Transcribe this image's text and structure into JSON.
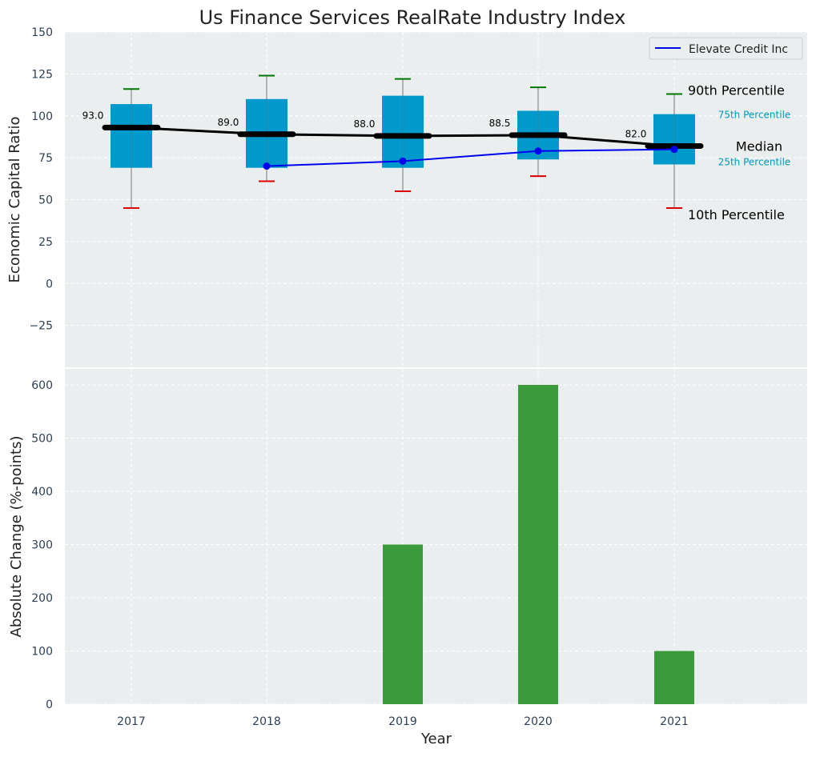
{
  "chart_data": [
    {
      "type": "box",
      "title": "Us Finance Services RealRate Industry Index",
      "xlabel": "",
      "ylabel": "Economic Capital Ratio",
      "x_categories": [
        "2017",
        "2018",
        "2019",
        "2020",
        "2021"
      ],
      "ylim": [
        -50,
        150
      ],
      "yticks": [
        -25,
        0,
        25,
        50,
        75,
        100,
        125,
        150
      ],
      "ytick_labels": [
        "−25",
        "0",
        "25",
        "50",
        "75",
        "100",
        "125",
        "150"
      ],
      "grid": true,
      "legend": {
        "position": "top-right",
        "entries": [
          "Elevate Credit Inc"
        ]
      },
      "percentiles": {
        "p10": [
          45,
          61,
          55,
          64,
          45
        ],
        "p25": [
          69,
          69,
          69,
          74,
          71
        ],
        "median": [
          93.0,
          89.0,
          88.0,
          88.5,
          82.0
        ],
        "p75": [
          107,
          110,
          112,
          103,
          101
        ],
        "p90": [
          116,
          124,
          122,
          117,
          113
        ]
      },
      "median_labels": [
        "93.0",
        "89.0",
        "88.0",
        "88.5",
        "82.0"
      ],
      "series": [
        {
          "name": "Elevate Credit Inc",
          "x": [
            "2018",
            "2019",
            "2020",
            "2021"
          ],
          "values": [
            70,
            73,
            79,
            80
          ],
          "color": "#0000ee"
        }
      ],
      "annotations": {
        "p90": "90th Percentile",
        "p75": "75th Percentile",
        "median": "Median",
        "p25": "25th Percentile",
        "p10": "10th Percentile"
      },
      "colors": {
        "box": "#0099cc",
        "median": "#000000",
        "p90": "#007700",
        "p10": "#dd0000",
        "background": "#eaeeef",
        "percentile_text": "#0099bb"
      }
    },
    {
      "type": "bar",
      "title": "",
      "xlabel": "Year",
      "ylabel": "Absolute Change (%-points)",
      "categories": [
        "2017",
        "2018",
        "2019",
        "2020",
        "2021"
      ],
      "values": [
        0,
        0,
        300,
        600,
        100
      ],
      "ylim": [
        0,
        630
      ],
      "yticks": [
        0,
        100,
        200,
        300,
        400,
        500,
        600
      ],
      "grid": true,
      "colors": {
        "bar": "#3a9a3c"
      }
    }
  ]
}
